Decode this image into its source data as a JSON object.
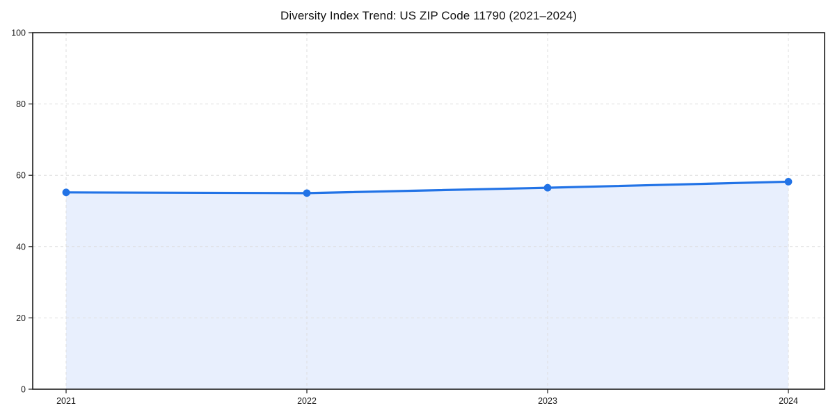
{
  "chart_data": {
    "type": "line",
    "title": "Diversity Index Trend: US ZIP Code 11790 (2021–2024)",
    "x": [
      "2021",
      "2022",
      "2023",
      "2024"
    ],
    "series": [
      {
        "name": "Diversity Index",
        "values": [
          55.2,
          55.0,
          56.5,
          58.2
        ],
        "color": "#2273e6",
        "fill_color": "#e8effd",
        "marker": "circle",
        "area_fill": true
      }
    ],
    "xlabel": "",
    "ylabel": "",
    "ylim": [
      0,
      100
    ],
    "yticks": [
      0,
      20,
      40,
      60,
      80,
      100
    ],
    "grid": {
      "show": true,
      "style": "dashed",
      "color": "#dedede"
    },
    "legend": {
      "show": false
    },
    "axis_color": "#1a1a1a",
    "tick_label_color": "#1a1a1a",
    "background": "#ffffff"
  }
}
